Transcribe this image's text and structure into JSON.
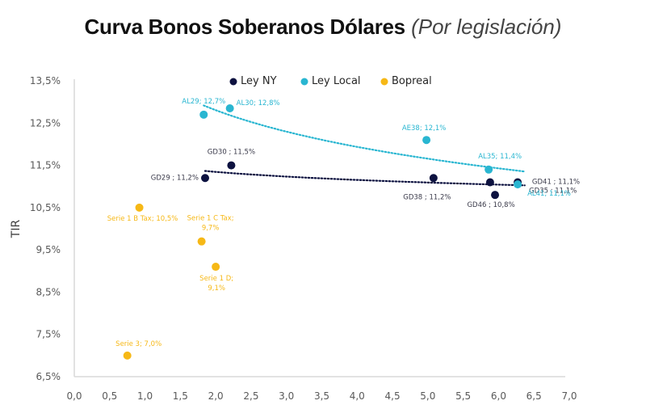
{
  "title": {
    "main": "Curva Bonos Soberanos Dólares",
    "subtitle": "(Por legislación)"
  },
  "chart_data": {
    "type": "scatter",
    "title": "Curva Bonos Soberanos Dólares (Por legislación)",
    "xlabel": "",
    "ylabel": "TIR",
    "xlim": [
      0,
      7
    ],
    "ylim": [
      6.5,
      13.5
    ],
    "x_ticks": [
      "0,0",
      "0,5",
      "1,0",
      "1,5",
      "2,0",
      "2,5",
      "3,0",
      "3,5",
      "4,0",
      "4,5",
      "5,0",
      "5,5",
      "6,0",
      "6,5",
      "7,0"
    ],
    "y_ticks": [
      "13,5%",
      "12,5%",
      "11,5%",
      "10,5%",
      "9,5%",
      "8,5%",
      "7,5%",
      "6,5%"
    ],
    "grid": false,
    "legend_position": "top",
    "series": [
      {
        "name": "Ley NY",
        "color": "#0d1240",
        "trendline": {
          "type": "log",
          "style": "dotted"
        },
        "points": [
          {
            "label": "GD29 ; 11,2%",
            "x": 1.85,
            "y": 11.2
          },
          {
            "label": "GD30 ; 11,5%",
            "x": 2.22,
            "y": 11.5
          },
          {
            "label": "GD38 ; 11,2%",
            "x": 5.08,
            "y": 11.2
          },
          {
            "label": "GD41 ; 11,1%",
            "x": 5.88,
            "y": 11.1
          },
          {
            "label": "GD46 ; 10,8%",
            "x": 5.95,
            "y": 10.8
          },
          {
            "label": "GD35 ; 11,1%",
            "x": 6.27,
            "y": 11.1
          }
        ]
      },
      {
        "name": "Ley Local",
        "color": "#29b6d1",
        "trendline": {
          "type": "log",
          "style": "dotted"
        },
        "points": [
          {
            "label": "AL29; 12,7%",
            "x": 1.83,
            "y": 12.7
          },
          {
            "label": "AL30; 12,8%",
            "x": 2.2,
            "y": 12.85
          },
          {
            "label": "AE38; 12,1%",
            "x": 4.98,
            "y": 12.1
          },
          {
            "label": "AL35; 11,4%",
            "x": 5.86,
            "y": 11.4
          },
          {
            "label": "AL41; 11,1%",
            "x": 6.27,
            "y": 11.05
          }
        ]
      },
      {
        "name": "Bopreal",
        "color": "#f6b816",
        "points": [
          {
            "label": "Serie 1 B Tax; 10,5%",
            "x": 0.92,
            "y": 10.5
          },
          {
            "label": "Serie 1 C Tax; 9,7%",
            "x": 1.8,
            "y": 9.7
          },
          {
            "label": "Serie 1 D; 9,1%",
            "x": 2.0,
            "y": 9.1
          },
          {
            "label": "Serie 3; 7,0%",
            "x": 0.75,
            "y": 7.0
          }
        ]
      }
    ]
  }
}
